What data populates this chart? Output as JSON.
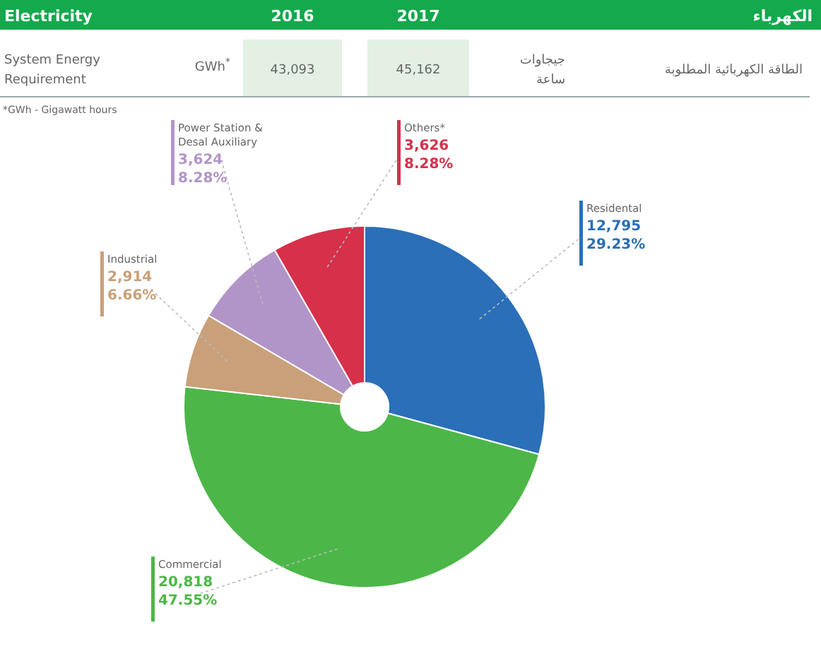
{
  "chart_data": {
    "type": "donut",
    "title": "Electricity",
    "annotations": [
      "2016",
      "2017",
      "الكهرباء",
      "System Energy Requirement",
      "GWh$^{*}$",
      "43,093",
      "45,162",
      "جيجاوات ساعة",
      "الطاقة الكهربائية المطلوبة",
      "*GWh - Gigawatt hours"
    ],
    "categories": [
      "Residental",
      "Commercial",
      "Industrial",
      "Power Station & Desal Auxiliary",
      "Others*"
    ],
    "values": [
      12795,
      20818,
      2914,
      3624,
      3626
    ],
    "colors": [
      "#2a6fb8",
      "#4cb748",
      "#c9a079",
      "#b295c8",
      "#d6304a"
    ],
    "value_labels": [
      "12,795\n29.23%",
      "20,818\n47.55%",
      "2,914\n6.66%",
      "3,624\n8.28%",
      "3,626\n8.28%"
    ]
  }
}
